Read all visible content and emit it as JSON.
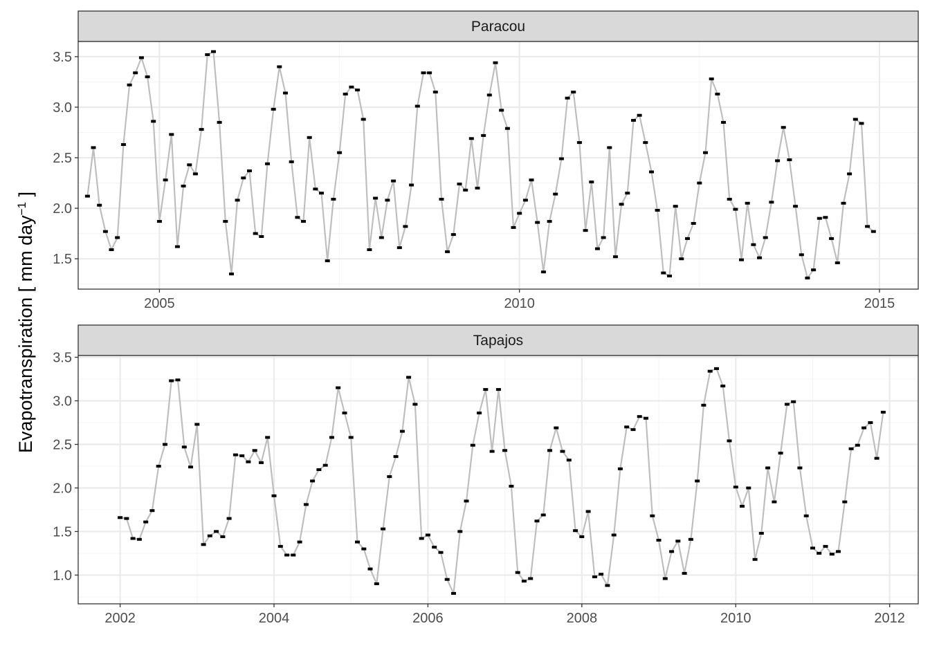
{
  "y_axis": {
    "label": "Evapotranspiration [ mm day",
    "label_sup": "−1",
    "label_end": " ]"
  },
  "colors": {
    "line": "#bebebe",
    "marker": "#000000",
    "strip_bg": "#d9d9d9",
    "grid_major": "#ebebeb",
    "grid_minor": "#f5f5f5",
    "border": "#333333"
  },
  "chart_data": [
    {
      "type": "line",
      "title": "Paracou",
      "ylim": [
        1.2,
        3.65
      ],
      "y_ticks": [
        1.5,
        2.0,
        2.5,
        3.0,
        3.5
      ],
      "y_tick_labels": [
        "1.5",
        "2.0",
        "2.5",
        "3.0",
        "3.5"
      ],
      "x_range": [
        "2003-11-15",
        "2015-07-15"
      ],
      "x_ticks": [
        "2005",
        "2010",
        "2015"
      ],
      "grid": true,
      "x_start": "2004-01",
      "series": [
        {
          "values": [
            2.12,
            2.6,
            2.03,
            1.77,
            1.59,
            1.71,
            2.63,
            3.22,
            3.34,
            3.49,
            3.3,
            2.86,
            1.87,
            2.28,
            2.73,
            1.62,
            2.22,
            2.43,
            2.34,
            2.78,
            3.52,
            3.55,
            2.85,
            1.87,
            1.35,
            2.08,
            2.3,
            2.37,
            1.75,
            1.72,
            2.44,
            2.98,
            3.4,
            3.14,
            2.46,
            1.91,
            1.87,
            2.7,
            2.19,
            2.15,
            1.48,
            2.09,
            2.55,
            3.13,
            3.2,
            3.17,
            2.88,
            1.59,
            2.1,
            1.71,
            2.08,
            2.27,
            1.61,
            1.82,
            2.23,
            3.01,
            3.34,
            3.34,
            3.15,
            2.09,
            1.57,
            1.74,
            2.24,
            2.18,
            2.69,
            2.2,
            2.72,
            3.12,
            3.44,
            2.97,
            2.79,
            1.81,
            1.95,
            2.08,
            2.28,
            1.86,
            1.37,
            1.87,
            2.14,
            2.49,
            3.09,
            3.15,
            2.65,
            1.78,
            2.26,
            1.6,
            1.71,
            2.6,
            1.52,
            2.04,
            2.15,
            2.87,
            2.92,
            2.65,
            2.36,
            1.98,
            1.36,
            1.33,
            2.02,
            1.5,
            1.7,
            1.85,
            2.25,
            2.55,
            3.28,
            3.13,
            2.85,
            2.09,
            1.99,
            1.49,
            2.05,
            1.64,
            1.51,
            1.71,
            2.06,
            2.47,
            2.8,
            2.48,
            2.02,
            1.54,
            1.31,
            1.39,
            1.9,
            1.91,
            1.7,
            1.46,
            2.05,
            2.34,
            2.88,
            2.84,
            1.82,
            1.77
          ]
        }
      ]
    },
    {
      "type": "line",
      "title": "Tapajos",
      "ylim": [
        0.67,
        3.52
      ],
      "y_ticks": [
        1.0,
        1.5,
        2.0,
        2.5,
        3.0,
        3.5
      ],
      "y_tick_labels": [
        "1.0",
        "1.5",
        "2.0",
        "2.5",
        "3.0",
        "3.5"
      ],
      "x_range": [
        "2001-06-15",
        "2012-05-15"
      ],
      "x_ticks": [
        "2002",
        "2004",
        "2006",
        "2008",
        "2010",
        "2012"
      ],
      "grid": true,
      "x_start": "2002-01",
      "series": [
        {
          "values": [
            1.66,
            1.65,
            1.42,
            1.41,
            1.61,
            1.74,
            2.25,
            2.5,
            3.23,
            3.24,
            2.47,
            2.24,
            2.73,
            1.35,
            1.45,
            1.5,
            1.44,
            1.65,
            2.38,
            2.37,
            2.3,
            2.43,
            2.29,
            2.58,
            1.91,
            1.33,
            1.23,
            1.23,
            1.38,
            1.81,
            2.08,
            2.21,
            2.26,
            2.58,
            3.15,
            2.86,
            2.58,
            1.38,
            1.3,
            1.07,
            0.9,
            1.53,
            2.13,
            2.36,
            2.65,
            3.27,
            2.96,
            1.42,
            1.46,
            1.32,
            1.26,
            0.95,
            0.79,
            1.5,
            1.85,
            2.49,
            2.86,
            3.13,
            2.42,
            3.13,
            2.43,
            2.02,
            1.03,
            0.93,
            0.96,
            1.62,
            1.69,
            2.43,
            2.69,
            2.42,
            2.32,
            1.51,
            1.44,
            1.73,
            0.98,
            1.01,
            0.88,
            1.46,
            2.22,
            2.7,
            2.67,
            2.82,
            2.8,
            1.68,
            1.4,
            0.96,
            1.27,
            1.39,
            1.02,
            1.41,
            2.08,
            2.95,
            3.34,
            3.37,
            3.17,
            2.54,
            2.01,
            1.79,
            2.0,
            1.18,
            1.48,
            2.23,
            1.84,
            2.4,
            2.96,
            2.99,
            2.23,
            1.68,
            1.31,
            1.25,
            1.33,
            1.24,
            1.27,
            1.84,
            2.45,
            2.49,
            2.69,
            2.75,
            2.34,
            2.87
          ]
        }
      ]
    }
  ]
}
